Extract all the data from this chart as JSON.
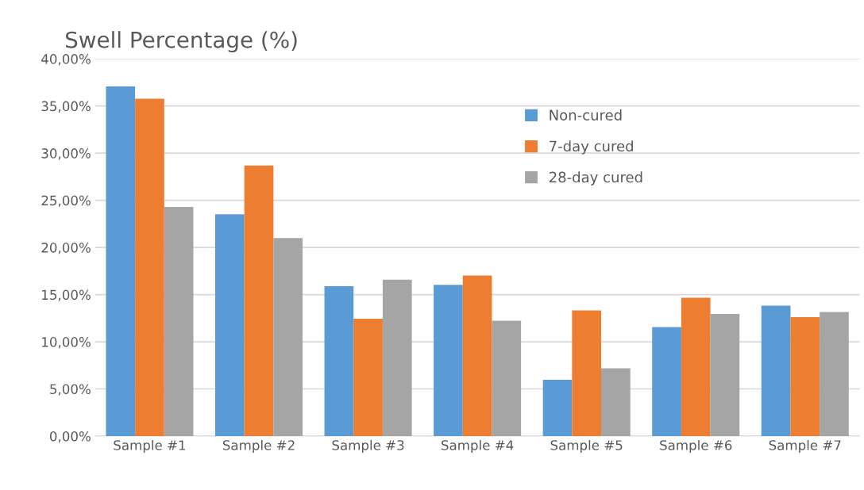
{
  "chart_data": {
    "type": "bar",
    "title": "Swell Percentage (%)",
    "categories": [
      "Sample #1",
      "Sample #2",
      "Sample #3",
      "Sample #4",
      "Sample #5",
      "Sample #6",
      "Sample #7"
    ],
    "series": [
      {
        "name": "Non-cured",
        "color": "#5b9bd5",
        "values": [
          37.08,
          23.52,
          15.88,
          16.03,
          5.97,
          11.56,
          13.82
        ]
      },
      {
        "name": "7-day cured",
        "color": "#ed7d31",
        "values": [
          35.77,
          28.69,
          12.44,
          17.03,
          13.32,
          14.68,
          12.62
        ]
      },
      {
        "name": "28-day cured",
        "color": "#a5a5a5",
        "values": [
          24.3,
          21.0,
          16.58,
          12.24,
          7.18,
          12.94,
          13.15
        ]
      }
    ],
    "ylim": [
      0,
      40
    ],
    "yticks": [
      {
        "value": 0,
        "label": "0,00%"
      },
      {
        "value": 5,
        "label": "5,00%"
      },
      {
        "value": 10,
        "label": "10,00%"
      },
      {
        "value": 15,
        "label": "15,00%"
      },
      {
        "value": 20,
        "label": "20,00%"
      },
      {
        "value": 25,
        "label": "25,00%"
      },
      {
        "value": 30,
        "label": "30,00%"
      },
      {
        "value": 35,
        "label": "35,00%"
      },
      {
        "value": 40,
        "label": "40,00%"
      }
    ],
    "grid": "y",
    "legend": "top"
  }
}
